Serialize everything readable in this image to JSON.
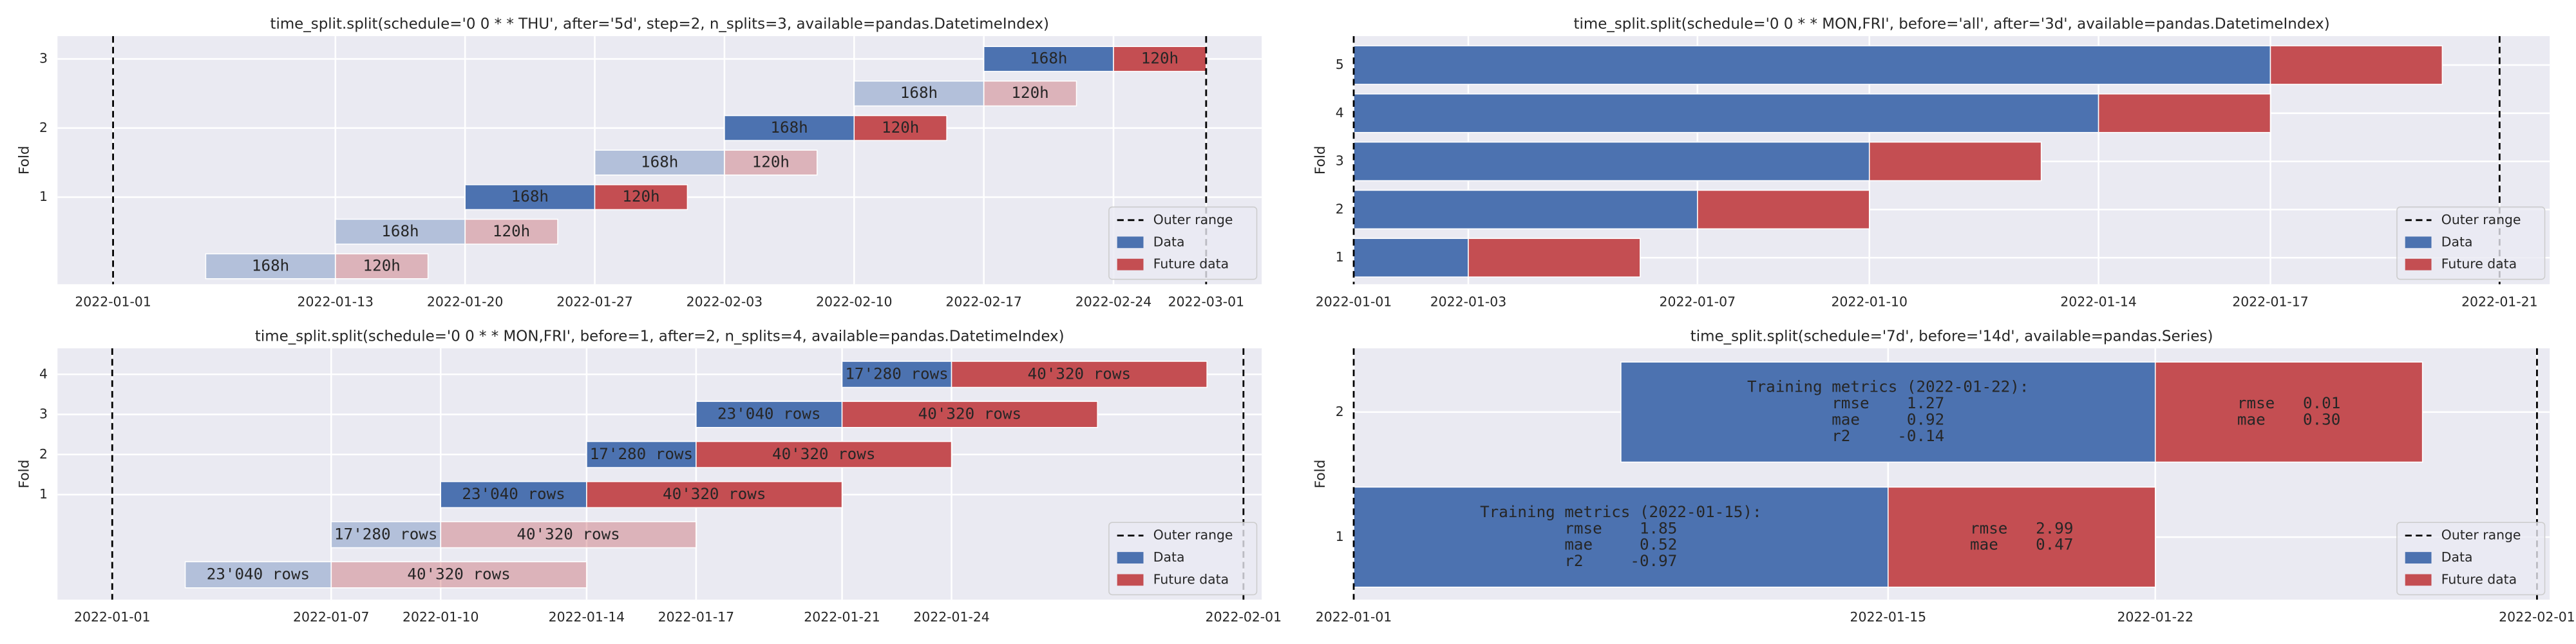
{
  "chart_data": [
    {
      "type": "timeline",
      "title": "time_split.split(schedule='0 0 * * THU', after='5d', step=2, n_splits=3, available=pandas.DatetimeIndex)",
      "ylabel": "Fold",
      "xlim": [
        "2021-12-29",
        "2022-03-04"
      ],
      "xticks": [
        "2022-01-01",
        "2022-01-13",
        "2022-01-20",
        "2022-01-27",
        "2022-02-03",
        "2022-02-10",
        "2022-02-17",
        "2022-02-24",
        "2022-03-01"
      ],
      "ylim": [
        -0.26,
        3.33
      ],
      "yticks": [
        1,
        2,
        3
      ],
      "grid": true,
      "legend": "lower right",
      "outer_range": [
        "2022-01-01",
        "2022-03-01"
      ],
      "outer_range_label": "Outer range",
      "series": [
        {
          "name": "Data",
          "color": "#4c72b0",
          "bars": [
            {
              "y": 0,
              "start": "2022-01-06",
              "end": "2022-01-13",
              "label": "168h",
              "opacity": 0.35
            },
            {
              "y": 0.5,
              "start": "2022-01-13",
              "end": "2022-01-20",
              "label": "168h",
              "opacity": 0.35
            },
            {
              "y": 1,
              "start": "2022-01-20",
              "end": "2022-01-27",
              "label": "168h"
            },
            {
              "y": 1.5,
              "start": "2022-01-27",
              "end": "2022-02-03",
              "label": "168h",
              "opacity": 0.35
            },
            {
              "y": 2,
              "start": "2022-02-03",
              "end": "2022-02-10",
              "label": "168h"
            },
            {
              "y": 2.5,
              "start": "2022-02-10",
              "end": "2022-02-17",
              "label": "168h",
              "opacity": 0.35
            },
            {
              "y": 3,
              "start": "2022-02-17",
              "end": "2022-02-24",
              "label": "168h"
            }
          ]
        },
        {
          "name": "Future data",
          "color": "#c44e52",
          "bars": [
            {
              "y": 0,
              "start": "2022-01-13",
              "end": "2022-01-18",
              "label": "120h",
              "opacity": 0.35
            },
            {
              "y": 0.5,
              "start": "2022-01-20",
              "end": "2022-01-25",
              "label": "120h",
              "opacity": 0.35
            },
            {
              "y": 1,
              "start": "2022-01-27",
              "end": "2022-02-01",
              "label": "120h"
            },
            {
              "y": 1.5,
              "start": "2022-02-03",
              "end": "2022-02-08",
              "label": "120h",
              "opacity": 0.35
            },
            {
              "y": 2,
              "start": "2022-02-10",
              "end": "2022-02-15",
              "label": "120h"
            },
            {
              "y": 2.5,
              "start": "2022-02-17",
              "end": "2022-02-22",
              "label": "120h",
              "opacity": 0.35
            },
            {
              "y": 3,
              "start": "2022-02-24",
              "end": "2022-03-01",
              "label": "120h"
            }
          ]
        }
      ]
    },
    {
      "type": "timeline",
      "title": "time_split.split(schedule='0 0 * * MON,FRI', before='all', after='3d', available=pandas.DatetimeIndex)",
      "ylabel": "Fold",
      "xlim": [
        "2022-01-01",
        "2022-01-21T21:00"
      ],
      "xticks": [
        "2022-01-01",
        "2022-01-03",
        "2022-01-07",
        "2022-01-10",
        "2022-01-14",
        "2022-01-17",
        "2022-01-21"
      ],
      "ylim": [
        0.45,
        5.6
      ],
      "yticks": [
        1,
        2,
        3,
        4,
        5
      ],
      "grid": true,
      "legend": "lower right",
      "outer_range": [
        "2022-01-01",
        "2022-01-21"
      ],
      "outer_range_label": "Outer range",
      "series": [
        {
          "name": "Data",
          "color": "#4c72b0",
          "bars": [
            {
              "y": 1,
              "start": "2022-01-01",
              "end": "2022-01-03"
            },
            {
              "y": 2,
              "start": "2022-01-01",
              "end": "2022-01-07"
            },
            {
              "y": 3,
              "start": "2022-01-01",
              "end": "2022-01-10"
            },
            {
              "y": 4,
              "start": "2022-01-01",
              "end": "2022-01-14"
            },
            {
              "y": 5,
              "start": "2022-01-01",
              "end": "2022-01-17"
            }
          ]
        },
        {
          "name": "Future data",
          "color": "#c44e52",
          "bars": [
            {
              "y": 1,
              "start": "2022-01-03",
              "end": "2022-01-06"
            },
            {
              "y": 2,
              "start": "2022-01-07",
              "end": "2022-01-10"
            },
            {
              "y": 3,
              "start": "2022-01-10",
              "end": "2022-01-13"
            },
            {
              "y": 4,
              "start": "2022-01-14",
              "end": "2022-01-17"
            },
            {
              "y": 5,
              "start": "2022-01-17",
              "end": "2022-01-20"
            }
          ]
        }
      ]
    },
    {
      "type": "timeline",
      "title": "time_split.split(schedule='0 0 * * MON,FRI', before=1, after=2, n_splits=4, available=pandas.DatetimeIndex)",
      "ylabel": "Fold",
      "xlim": [
        "2021-12-30T12:00",
        "2022-02-01T12:00"
      ],
      "xticks": [
        "2022-01-01",
        "2022-01-07",
        "2022-01-10",
        "2022-01-14",
        "2022-01-17",
        "2022-01-21",
        "2022-01-24",
        "2022-02-01"
      ],
      "ylim": [
        -1.62,
        4.65
      ],
      "yticks": [
        1,
        2,
        3,
        4
      ],
      "grid": true,
      "legend": "lower right",
      "outer_range": [
        "2022-01-01",
        "2022-02-01"
      ],
      "outer_range_label": "Outer range",
      "series": [
        {
          "name": "Data",
          "color": "#4c72b0",
          "bars": [
            {
              "y": -1,
              "start": "2022-01-03",
              "end": "2022-01-07",
              "label": "23'040 rows",
              "opacity": 0.35
            },
            {
              "y": 0,
              "start": "2022-01-07",
              "end": "2022-01-10",
              "label": "17'280 rows",
              "opacity": 0.35
            },
            {
              "y": 1,
              "start": "2022-01-10",
              "end": "2022-01-14",
              "label": "23'040 rows"
            },
            {
              "y": 2,
              "start": "2022-01-14",
              "end": "2022-01-17",
              "label": "17'280 rows"
            },
            {
              "y": 3,
              "start": "2022-01-17",
              "end": "2022-01-21",
              "label": "23'040 rows"
            },
            {
              "y": 4,
              "start": "2022-01-21",
              "end": "2022-01-24",
              "label": "17'280 rows"
            }
          ]
        },
        {
          "name": "Future data",
          "color": "#c44e52",
          "bars": [
            {
              "y": -1,
              "start": "2022-01-07",
              "end": "2022-01-14",
              "label": "40'320 rows",
              "opacity": 0.35
            },
            {
              "y": 0,
              "start": "2022-01-10",
              "end": "2022-01-17",
              "label": "40'320 rows",
              "opacity": 0.35
            },
            {
              "y": 1,
              "start": "2022-01-14",
              "end": "2022-01-21",
              "label": "40'320 rows"
            },
            {
              "y": 2,
              "start": "2022-01-17",
              "end": "2022-01-24",
              "label": "40'320 rows"
            },
            {
              "y": 3,
              "start": "2022-01-21",
              "end": "2022-01-28",
              "label": "40'320 rows"
            },
            {
              "y": 4,
              "start": "2022-01-24",
              "end": "2022-01-31",
              "label": "40'320 rows"
            }
          ]
        }
      ]
    },
    {
      "type": "timeline",
      "title": "time_split.split(schedule='7d', before='14d', available=pandas.Series)",
      "ylabel": "Fold",
      "xlim": [
        "2022-01-01",
        "2022-02-01T08:00"
      ],
      "xticks": [
        "2022-01-01",
        "2022-01-15",
        "2022-01-22",
        "2022-02-01"
      ],
      "ylim": [
        0.5,
        2.51
      ],
      "yticks": [
        1,
        2
      ],
      "grid": true,
      "legend": "lower right",
      "outer_range": [
        "2022-01-01",
        "2022-02-01"
      ],
      "outer_range_label": "Outer range",
      "series": [
        {
          "name": "Data",
          "color": "#4c72b0",
          "bars": [
            {
              "y": 1,
              "start": "2022-01-01",
              "end": "2022-01-15",
              "label": [
                "Training metrics (2022-01-15):",
                "         rmse    1.85",
                "         mae     0.52",
                "         r2     -0.97"
              ]
            },
            {
              "y": 2,
              "start": "2022-01-08",
              "end": "2022-01-22",
              "label": [
                "Training metrics (2022-01-22):",
                "         rmse    1.27",
                "         mae     0.92",
                "         r2     -0.14"
              ]
            }
          ]
        },
        {
          "name": "Future data",
          "color": "#c44e52",
          "bars": [
            {
              "y": 1,
              "start": "2022-01-15",
              "end": "2022-01-22",
              "label": [
                "rmse   2.99",
                "mae    0.47"
              ]
            },
            {
              "y": 2,
              "start": "2022-01-22",
              "end": "2022-01-29",
              "label": [
                "rmse   0.01",
                "mae    0.30"
              ]
            }
          ]
        }
      ]
    }
  ]
}
